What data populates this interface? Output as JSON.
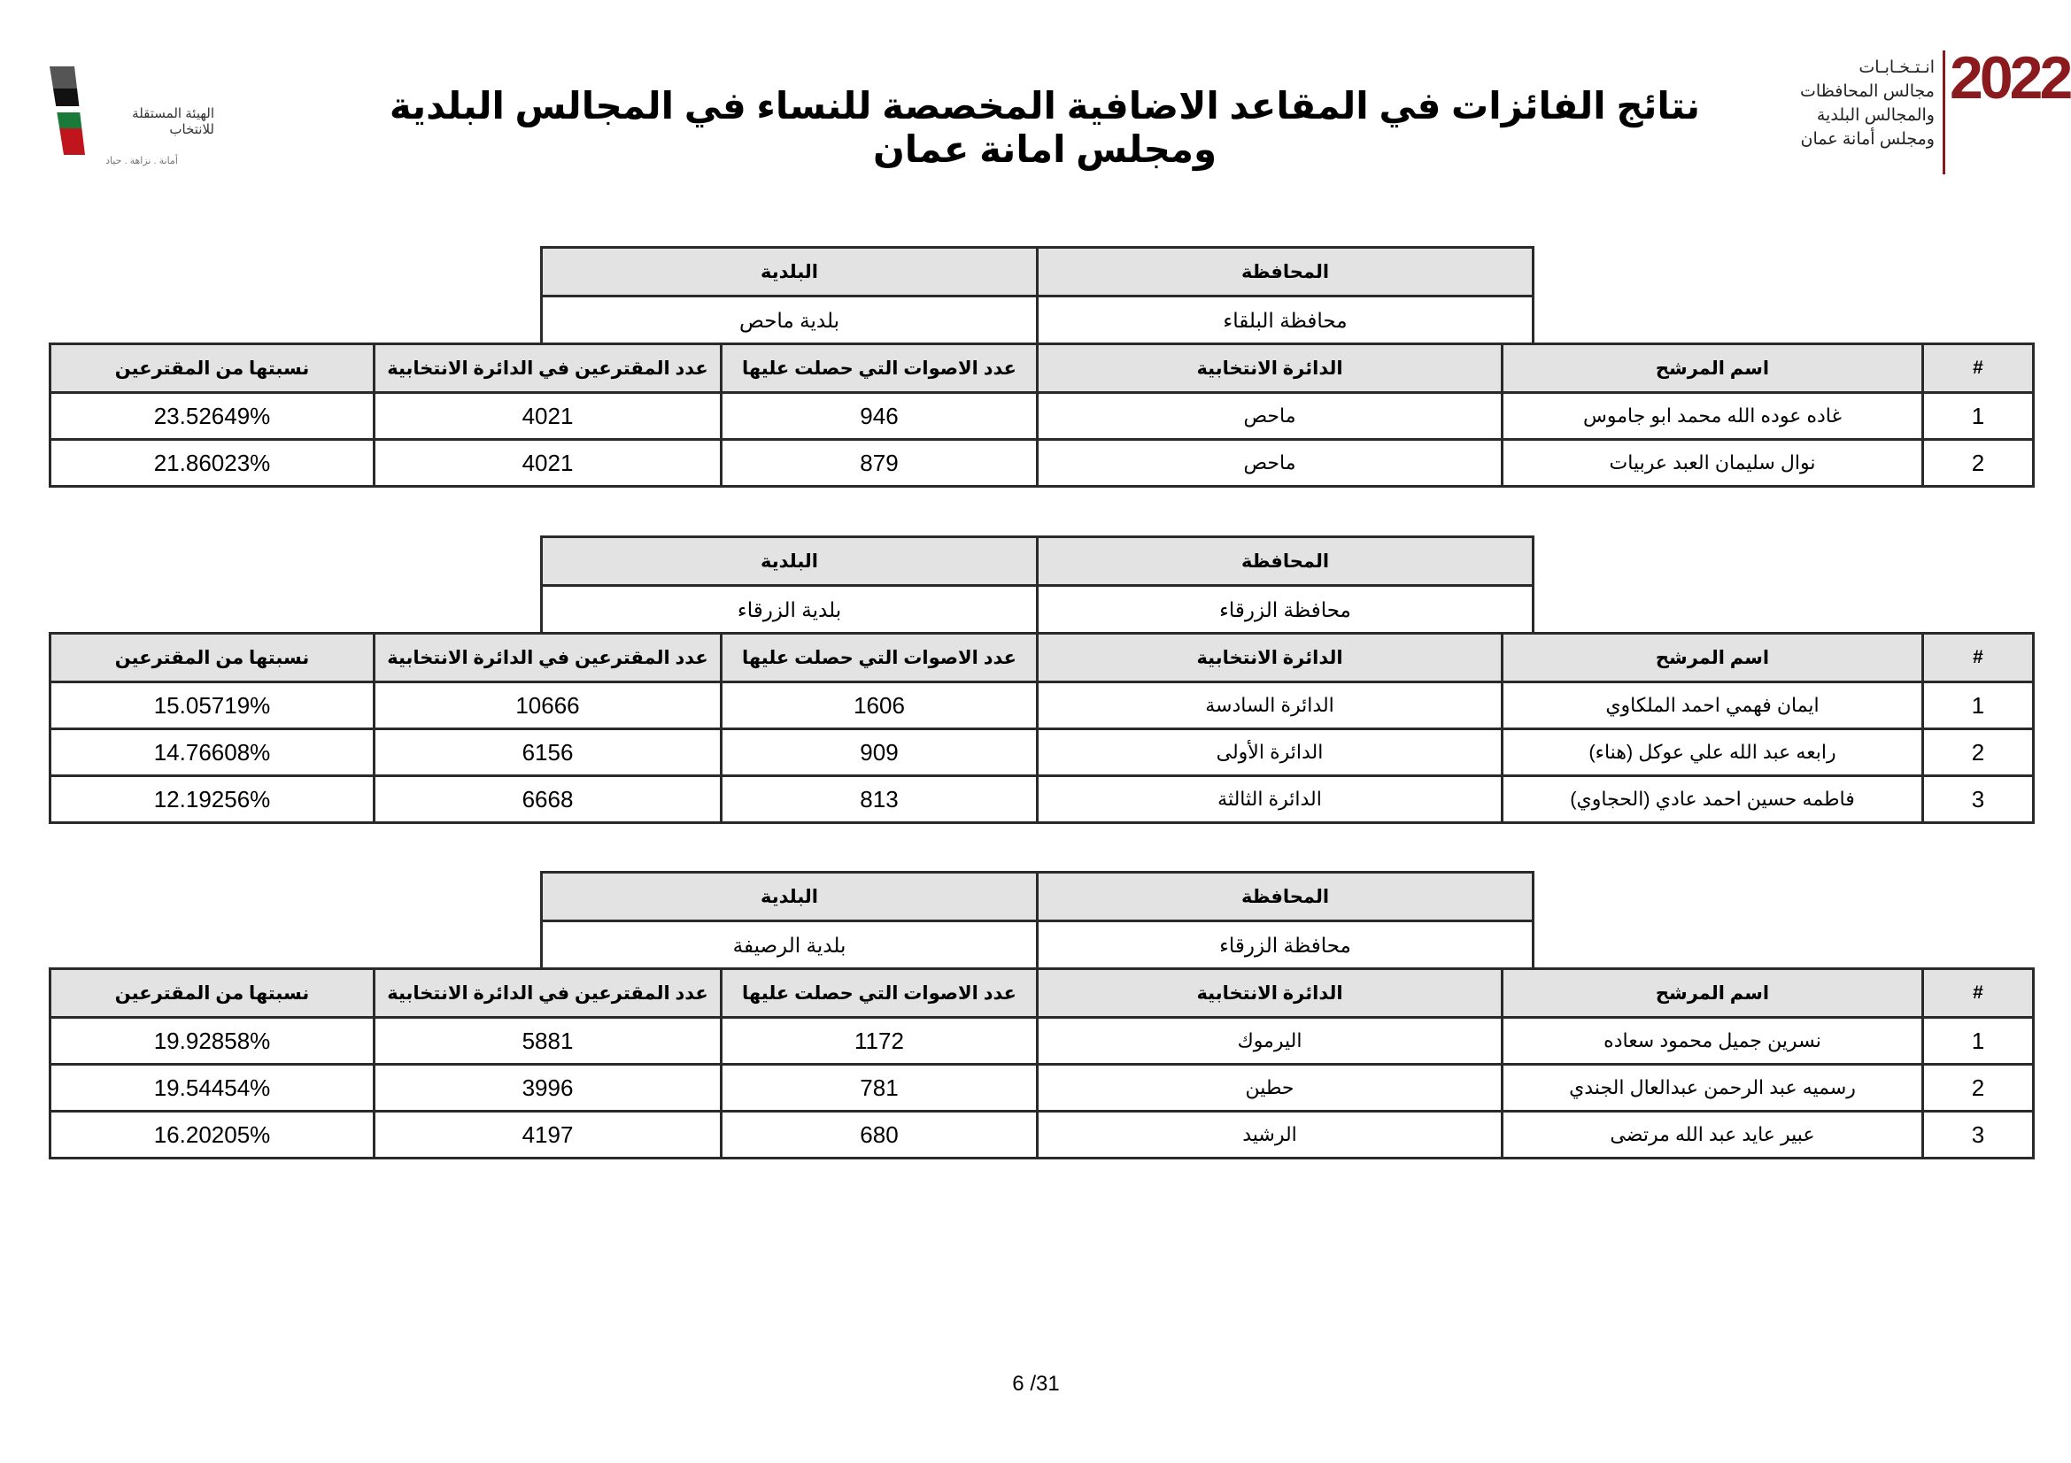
{
  "title": "نتائج الفائزات في المقاعد الاضافية المخصصة للنساء في المجالس البلدية ومجلس امانة عمان",
  "logo_right": {
    "year": "2022",
    "lines": [
      "انـتـخـابـات",
      "مجالس المحافظات",
      "والمجالس البلدية",
      "ومجلس أمانة عمان"
    ],
    "color": "#8b1a1f"
  },
  "logo_left": {
    "name": "الهيئة المستقلة للانتخاب",
    "motto": "أمانة . نزاهة . حياد"
  },
  "labels": {
    "municipality": "البلدية",
    "governorate": "المحافظة",
    "num": "#",
    "candidate": "اسم المرشح",
    "district": "الدائرة الانتخابية",
    "votes": "عدد الاصوات التي حصلت عليها",
    "voters": "عدد المقترعين في الدائرة الانتخابية",
    "pct": "نسبتها من المقترعين"
  },
  "blocks": [
    {
      "municipality": "بلدية ماحص",
      "governorate": "محافظة البلقاء",
      "rows": [
        {
          "num": "1",
          "candidate": "غاده عوده الله محمد ابو جاموس",
          "district": "ماحص",
          "votes": "946",
          "voters": "4021",
          "pct": "23.52649%"
        },
        {
          "num": "2",
          "candidate": "نوال سليمان العبد عربيات",
          "district": "ماحص",
          "votes": "879",
          "voters": "4021",
          "pct": "21.86023%"
        }
      ]
    },
    {
      "municipality": "بلدية الزرقاء",
      "governorate": "محافظة الزرقاء",
      "rows": [
        {
          "num": "1",
          "candidate": "ايمان فهمي احمد الملكاوي",
          "district": "الدائرة السادسة",
          "votes": "1606",
          "voters": "10666",
          "pct": "15.05719%"
        },
        {
          "num": "2",
          "candidate": "رابعه عبد الله علي عوكل (هناء)",
          "district": "الدائرة الأولى",
          "votes": "909",
          "voters": "6156",
          "pct": "14.76608%"
        },
        {
          "num": "3",
          "candidate": "فاطمه حسين احمد عادي (الحجاوي)",
          "district": "الدائرة الثالثة",
          "votes": "813",
          "voters": "6668",
          "pct": "12.19256%"
        }
      ]
    },
    {
      "municipality": "بلدية الرصيفة",
      "governorate": "محافظة الزرقاء",
      "rows": [
        {
          "num": "1",
          "candidate": "نسرين جميل محمود سعاده",
          "district": "اليرموك",
          "votes": "1172",
          "voters": "5881",
          "pct": "19.92858%"
        },
        {
          "num": "2",
          "candidate": "رسميه عبد الرحمن عبدالعال الجندي",
          "district": "حطين",
          "votes": "781",
          "voters": "3996",
          "pct": "19.54454%"
        },
        {
          "num": "3",
          "candidate": "عبير عايد عبد الله مرتضى",
          "district": "الرشيد",
          "votes": "680",
          "voters": "4197",
          "pct": "16.20205%"
        }
      ]
    }
  ],
  "page": "6 /31"
}
